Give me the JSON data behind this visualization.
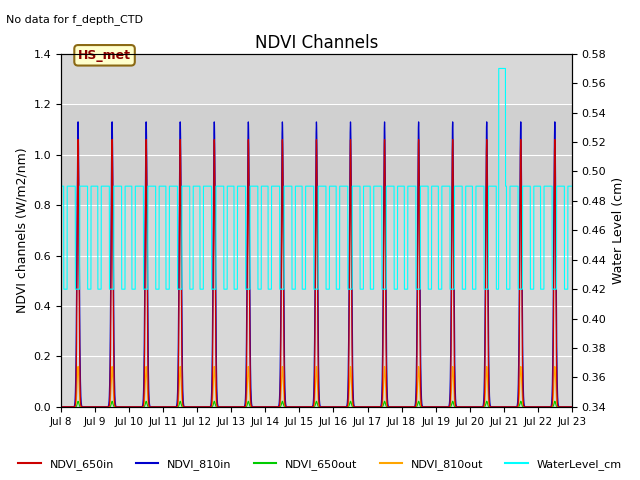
{
  "title": "NDVI Channels",
  "subtitle": "No data for f_depth_CTD",
  "ylabel_left": "NDVI channels (W/m2/nm)",
  "ylabel_right": "Water Level (cm)",
  "annotation": "HS_met",
  "ylim_left": [
    0,
    1.4
  ],
  "ylim_right": [
    0.34,
    0.58
  ],
  "xtick_labels": [
    "Jul 8",
    "Jul 9",
    "Jul 10",
    "Jul 11",
    "Jul 12",
    "Jul 13",
    "Jul 14",
    "Jul 15",
    "Jul 16",
    "Jul 17",
    "Jul 18",
    "Jul 19",
    "Jul 20",
    "Jul 21",
    "Jul 22",
    "Jul 23"
  ],
  "colors": {
    "ndvi_650in": "#cc0000",
    "ndvi_810in": "#0000cc",
    "ndvi_650out": "#00cc00",
    "ndvi_810out": "#ffa500",
    "water_level": "#00ffff",
    "background": "#d8d8d8"
  },
  "legend_entries": [
    "NDVI_650in",
    "NDVI_810in",
    "NDVI_650out",
    "NDVI_810out",
    "WaterLevel_cm"
  ],
  "wl_high": 0.49,
  "wl_low": 0.42,
  "wl_spike": 0.57,
  "wl_spike_day": 13
}
